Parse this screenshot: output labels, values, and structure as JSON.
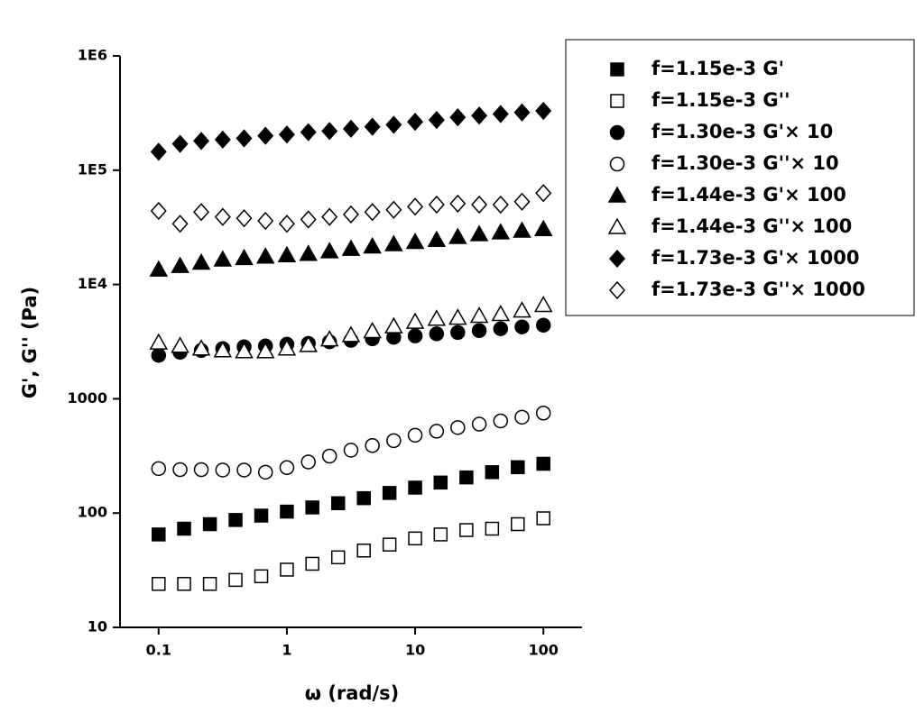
{
  "chart_data": {
    "type": "scatter",
    "xlabel": "ω (rad/s)",
    "ylabel": "G', G'' (Pa)",
    "xscale": "log",
    "yscale": "log",
    "xlim": [
      0.05,
      200
    ],
    "ylim": [
      10,
      1000000
    ],
    "xticks": [
      0.1,
      1,
      10,
      100
    ],
    "yticks": [
      10,
      100,
      1000,
      {
        "value": 10000,
        "label": "1E4"
      },
      {
        "value": 100000,
        "label": "1E5"
      },
      {
        "value": 1000000,
        "label": "1E6"
      }
    ],
    "legend": "upper right",
    "series": [
      {
        "name": "f=1.15e-3 G'",
        "color": "#000000",
        "marker": "square",
        "filled": true,
        "x": [
          0.1,
          0.158,
          0.251,
          0.398,
          0.631,
          1,
          1.58,
          2.51,
          3.98,
          6.31,
          10,
          15.8,
          25.1,
          39.8,
          63.1,
          100
        ],
        "values": [
          65,
          73,
          80,
          87,
          95,
          103,
          112,
          122,
          135,
          150,
          167,
          185,
          205,
          228,
          252,
          270
        ]
      },
      {
        "name": "f=1.15e-3 G''",
        "color": "#000000",
        "marker": "square",
        "filled": false,
        "x": [
          0.1,
          0.158,
          0.251,
          0.398,
          0.631,
          1,
          1.58,
          2.51,
          3.98,
          6.31,
          10,
          15.8,
          25.1,
          39.8,
          63.1,
          100
        ],
        "values": [
          24,
          24,
          24,
          26,
          28,
          32,
          36,
          41,
          47,
          53,
          60,
          65,
          71,
          73,
          80,
          90
        ]
      },
      {
        "name": "f=1.30e-3 G'× 10",
        "color": "#000000",
        "marker": "circle",
        "filled": true,
        "x": [
          0.1,
          0.147,
          0.215,
          0.316,
          0.464,
          0.681,
          1,
          1.47,
          2.15,
          3.16,
          4.64,
          6.81,
          10,
          14.7,
          21.5,
          31.6,
          46.4,
          68.1,
          100
        ],
        "values": [
          2400,
          2550,
          2650,
          2750,
          2850,
          2900,
          3000,
          3050,
          3150,
          3250,
          3350,
          3450,
          3550,
          3700,
          3800,
          3950,
          4100,
          4250,
          4400
        ]
      },
      {
        "name": "f=1.30e-3 G''× 10",
        "color": "#000000",
        "marker": "circle",
        "filled": false,
        "x": [
          0.1,
          0.147,
          0.215,
          0.316,
          0.464,
          0.681,
          1,
          1.47,
          2.15,
          3.16,
          4.64,
          6.81,
          10,
          14.7,
          21.5,
          31.6,
          46.4,
          68.1,
          100
        ],
        "values": [
          245,
          240,
          240,
          238,
          238,
          228,
          250,
          280,
          315,
          355,
          390,
          430,
          480,
          520,
          560,
          600,
          640,
          690,
          750
        ]
      },
      {
        "name": "f=1.44e-3 G'× 100",
        "color": "#000000",
        "marker": "triangle",
        "filled": true,
        "x": [
          0.1,
          0.147,
          0.215,
          0.316,
          0.464,
          0.681,
          1,
          1.47,
          2.15,
          3.16,
          4.64,
          6.81,
          10,
          14.7,
          21.5,
          31.6,
          46.4,
          68.1,
          100
        ],
        "values": [
          13500,
          14500,
          15500,
          16500,
          17000,
          17500,
          18000,
          18500,
          19500,
          20500,
          21500,
          22500,
          23500,
          24500,
          26000,
          27500,
          28500,
          29500,
          30500
        ]
      },
      {
        "name": "f=1.44e-3 G''× 100",
        "color": "#000000",
        "marker": "triangle",
        "filled": false,
        "x": [
          0.1,
          0.147,
          0.215,
          0.316,
          0.464,
          0.681,
          1,
          1.47,
          2.15,
          3.16,
          4.64,
          6.81,
          10,
          14.7,
          21.5,
          31.6,
          46.4,
          68.1,
          100
        ],
        "values": [
          3100,
          2900,
          2750,
          2650,
          2600,
          2600,
          2750,
          2950,
          3300,
          3600,
          3900,
          4300,
          4700,
          5000,
          5100,
          5300,
          5500,
          5900,
          6600
        ]
      },
      {
        "name": "f=1.73e-3 G'× 1000",
        "color": "#000000",
        "marker": "diamond",
        "filled": true,
        "x": [
          0.1,
          0.147,
          0.215,
          0.316,
          0.464,
          0.681,
          1,
          1.47,
          2.15,
          3.16,
          4.64,
          6.81,
          10,
          14.7,
          21.5,
          31.6,
          46.4,
          68.1,
          100
        ],
        "values": [
          145000,
          170000,
          180000,
          185000,
          190000,
          200000,
          205000,
          215000,
          220000,
          230000,
          240000,
          250000,
          265000,
          275000,
          290000,
          300000,
          310000,
          320000,
          330000
        ]
      },
      {
        "name": "f=1.73e-3 G''× 1000",
        "color": "#000000",
        "marker": "diamond",
        "filled": false,
        "x": [
          0.1,
          0.147,
          0.215,
          0.316,
          0.464,
          0.681,
          1,
          1.47,
          2.15,
          3.16,
          4.64,
          6.81,
          10,
          14.7,
          21.5,
          31.6,
          46.4,
          68.1,
          100
        ],
        "values": [
          44000,
          34000,
          43000,
          39000,
          38000,
          36000,
          34000,
          37000,
          39000,
          41000,
          43000,
          45000,
          48000,
          50000,
          51000,
          50000,
          50000,
          53000,
          63000
        ]
      }
    ]
  }
}
